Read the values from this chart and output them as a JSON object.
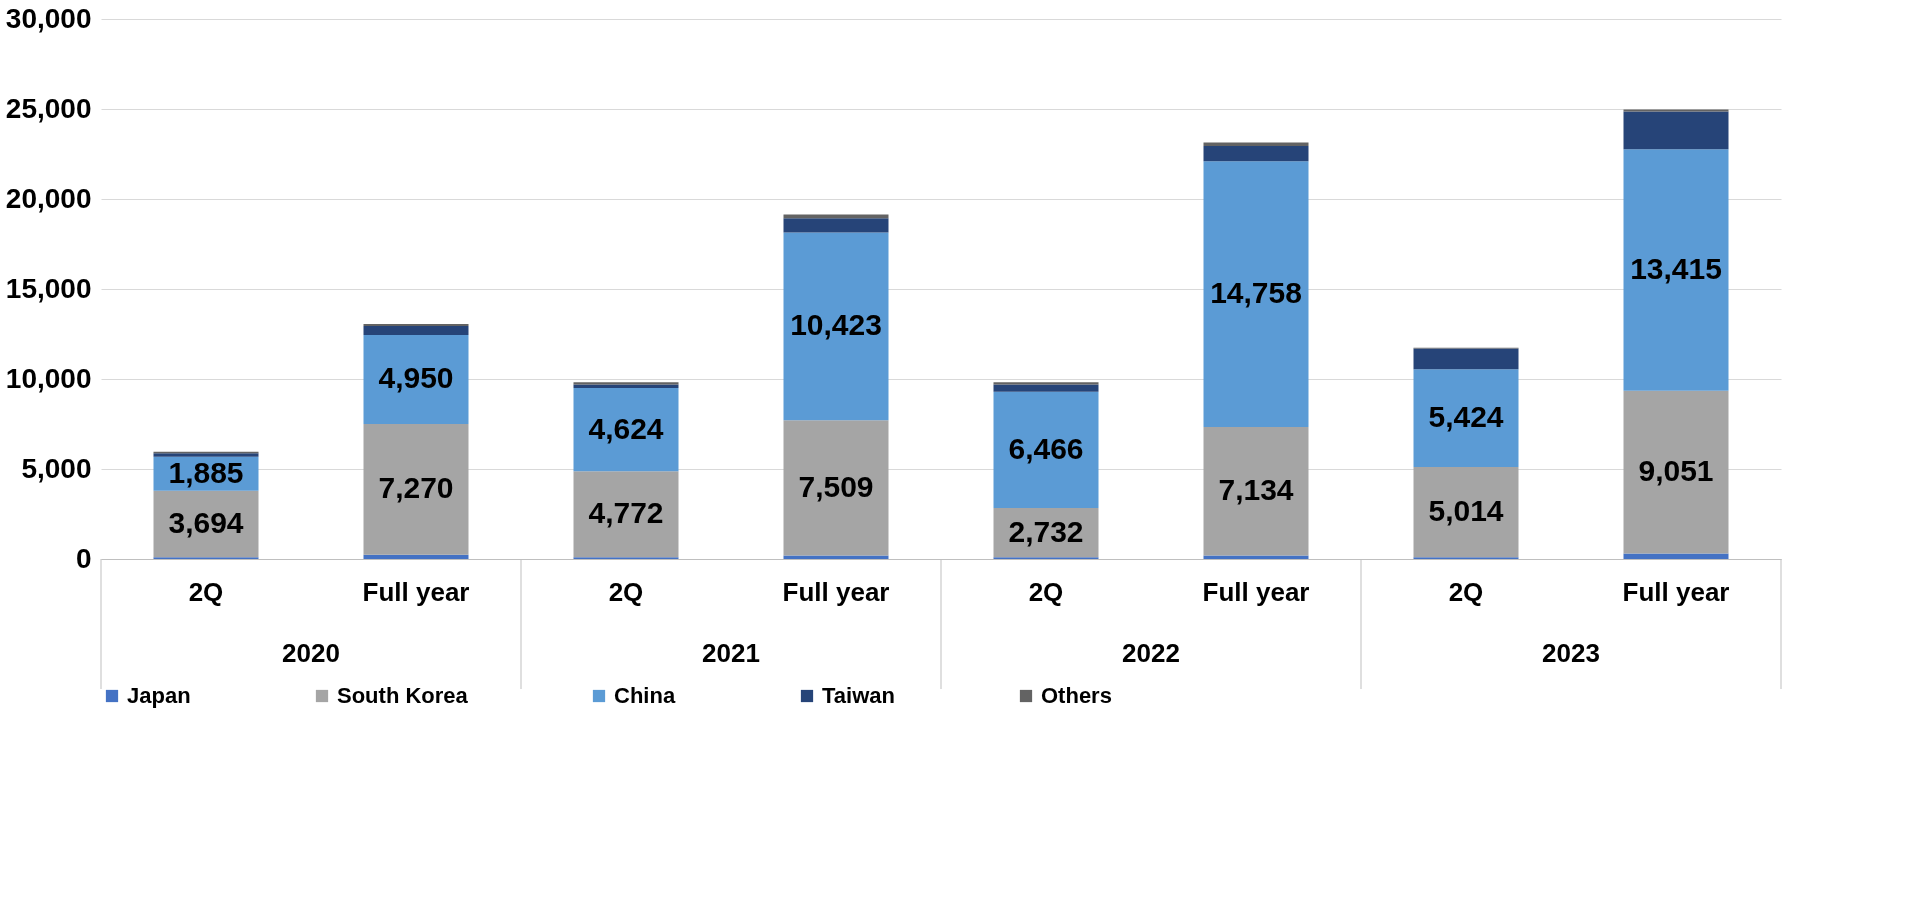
{
  "chart_data": {
    "type": "bar",
    "stacked": true,
    "categories": [
      "2Q",
      "Full year",
      "2Q",
      "Full year",
      "2Q",
      "Full year",
      "2Q",
      "Full year"
    ],
    "annotations": [
      "2020",
      "2021",
      "2022",
      "2023"
    ],
    "series": [
      {
        "name": "Japan",
        "color": "#4472c4",
        "values": [
          100,
          230,
          100,
          200,
          100,
          200,
          100,
          300
        ]
      },
      {
        "name": "South Korea",
        "color": "#a5a5a5",
        "values": [
          3694,
          7270,
          4772,
          7509,
          2732,
          7134,
          5014,
          9051
        ],
        "value_labels": [
          "3,694",
          "7,270",
          "4,772",
          "7,509",
          "2,732",
          "7,134",
          "5,014",
          "9,051"
        ]
      },
      {
        "name": "China",
        "color": "#5b9bd5",
        "values": [
          1885,
          4950,
          4624,
          10423,
          6466,
          14758,
          5424,
          13415
        ],
        "value_labels": [
          "1,885",
          "4,950",
          "4,624",
          "10,423",
          "6,466",
          "14,758",
          "5,424",
          "13,415"
        ]
      },
      {
        "name": "Taiwan",
        "color": "#264478",
        "values": [
          200,
          500,
          200,
          800,
          400,
          850,
          1150,
          2100
        ]
      },
      {
        "name": "Others",
        "color": "#636363",
        "values": [
          80,
          100,
          120,
          200,
          120,
          200,
          50,
          100
        ]
      }
    ],
    "ylim": [
      0,
      30000
    ],
    "yticks": [
      0,
      {
        "value": 5000,
        "label": "5,000"
      },
      {
        "value": 10000,
        "label": "10,000"
      },
      {
        "value": 15000,
        "label": "15,000"
      },
      {
        "value": 20000,
        "label": "20,000"
      },
      {
        "value": 25000,
        "label": "25,000"
      },
      {
        "value": 30000,
        "label": "30,000"
      }
    ],
    "grid": "y",
    "legend": "bottom"
  }
}
